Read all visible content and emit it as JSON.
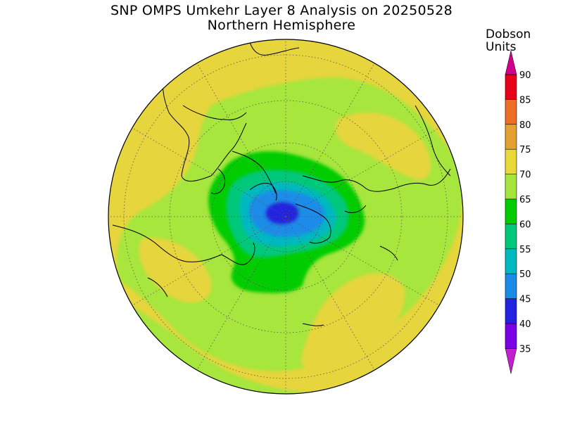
{
  "title": {
    "line1": "SNP OMPS Umkehr Layer 8 Analysis on 20250528",
    "line2": "Northern Hemisphere"
  },
  "colorbar": {
    "label_line1": "Dobson",
    "label_line2": "Units",
    "levels": [
      {
        "value": "90",
        "color": "#e8001a"
      },
      {
        "value": "85",
        "color": "#f06e28"
      },
      {
        "value": "80",
        "color": "#e4a030"
      },
      {
        "value": "75",
        "color": "#e8d838"
      },
      {
        "value": "70",
        "color": "#a6e63c"
      },
      {
        "value": "65",
        "color": "#00cc00"
      },
      {
        "value": "60",
        "color": "#00c87a"
      },
      {
        "value": "55",
        "color": "#00b8c0"
      },
      {
        "value": "50",
        "color": "#1a8ce8"
      },
      {
        "value": "45",
        "color": "#2222e0"
      },
      {
        "value": "40",
        "color": "#7a00e6"
      },
      {
        "value": "35",
        "color": "#b000d0"
      }
    ],
    "top_arrow_color": "#d0008a",
    "bottom_arrow_color": "#c020d0"
  },
  "map": {
    "projection": "polar stereographic",
    "hemisphere": "Northern"
  }
}
